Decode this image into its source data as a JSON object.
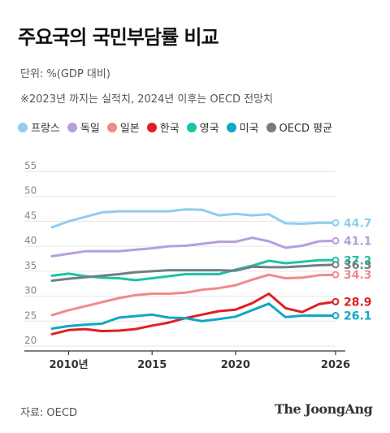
{
  "header": {
    "title": "주요국의 국민부담률 비교",
    "unit": "단위: %(GDP 대비)",
    "note": "※2023년 까지는 실적치, 2024년 이후는 OECD 전망치"
  },
  "footer": {
    "source": "자료: OECD",
    "brand": "The JoongAng"
  },
  "colors": {
    "gridline": "#e6e6e6",
    "axis": "#333333",
    "tick_label": "#888888"
  },
  "chart_data": {
    "type": "line",
    "x": [
      2009,
      2010,
      2011,
      2012,
      2013,
      2014,
      2015,
      2016,
      2017,
      2018,
      2019,
      2020,
      2021,
      2022,
      2023,
      2024,
      2025,
      2026
    ],
    "xlim": [
      2009,
      2026
    ],
    "ylim": [
      20,
      55
    ],
    "yticks": [
      20,
      25,
      30,
      35,
      40,
      45,
      50,
      55
    ],
    "xticks": [
      {
        "x": 2010,
        "label": "2010년"
      },
      {
        "x": 2015,
        "label": "2015"
      },
      {
        "x": 2020,
        "label": "2020"
      },
      {
        "x": 2026,
        "label": "2026"
      }
    ],
    "grid": true,
    "legend_position": "top",
    "series": [
      {
        "name": "프랑스",
        "color": "#8ecdf0",
        "values": [
          43.8,
          45.0,
          45.9,
          46.8,
          47.0,
          47.0,
          47.0,
          47.0,
          47.4,
          47.3,
          46.2,
          46.5,
          46.2,
          46.4,
          44.6,
          44.5,
          44.7,
          44.7
        ],
        "end_label": "44.7"
      },
      {
        "name": "독일",
        "color": "#b69ee0",
        "values": [
          38.0,
          38.5,
          39.0,
          39.0,
          39.0,
          39.3,
          39.6,
          40.0,
          40.1,
          40.5,
          40.9,
          40.9,
          41.7,
          41.0,
          39.7,
          40.1,
          41.0,
          41.1
        ],
        "end_label": "41.1"
      },
      {
        "name": "일본",
        "color": "#f08a8a",
        "values": [
          26.2,
          27.2,
          28.0,
          28.8,
          29.6,
          30.2,
          30.5,
          30.5,
          30.7,
          31.3,
          31.6,
          32.2,
          33.3,
          34.3,
          33.6,
          33.7,
          34.2,
          34.3
        ],
        "end_label": "34.3"
      },
      {
        "name": "한국",
        "color": "#e02020",
        "values": [
          22.4,
          23.2,
          23.4,
          23.0,
          23.1,
          23.4,
          24.1,
          24.7,
          25.6,
          26.3,
          27.0,
          27.3,
          28.6,
          30.5,
          27.6,
          26.8,
          28.4,
          28.9
        ],
        "end_label": "28.9"
      },
      {
        "name": "영국",
        "color": "#1cc4a6",
        "values": [
          34.1,
          34.5,
          34.0,
          33.7,
          33.6,
          33.2,
          33.6,
          34.0,
          34.4,
          34.4,
          34.4,
          35.3,
          36.1,
          37.1,
          36.6,
          36.9,
          37.2,
          37.2
        ],
        "end_label": "37.2"
      },
      {
        "name": "미국",
        "color": "#10a8c4",
        "values": [
          23.5,
          24.0,
          24.3,
          24.5,
          25.7,
          26.0,
          26.3,
          25.7,
          25.6,
          25.0,
          25.4,
          25.9,
          27.2,
          28.5,
          25.8,
          26.1,
          26.1,
          26.1
        ],
        "end_label": "26.1"
      },
      {
        "name": "OECD 평균",
        "color": "#6f7f88",
        "values": [
          33.1,
          33.5,
          33.8,
          34.1,
          34.4,
          34.8,
          35.0,
          35.2,
          35.2,
          35.2,
          35.2,
          35.1,
          35.9,
          35.8,
          35.8,
          36.0,
          36.2,
          36.3
        ],
        "end_label": "36.3"
      }
    ]
  }
}
